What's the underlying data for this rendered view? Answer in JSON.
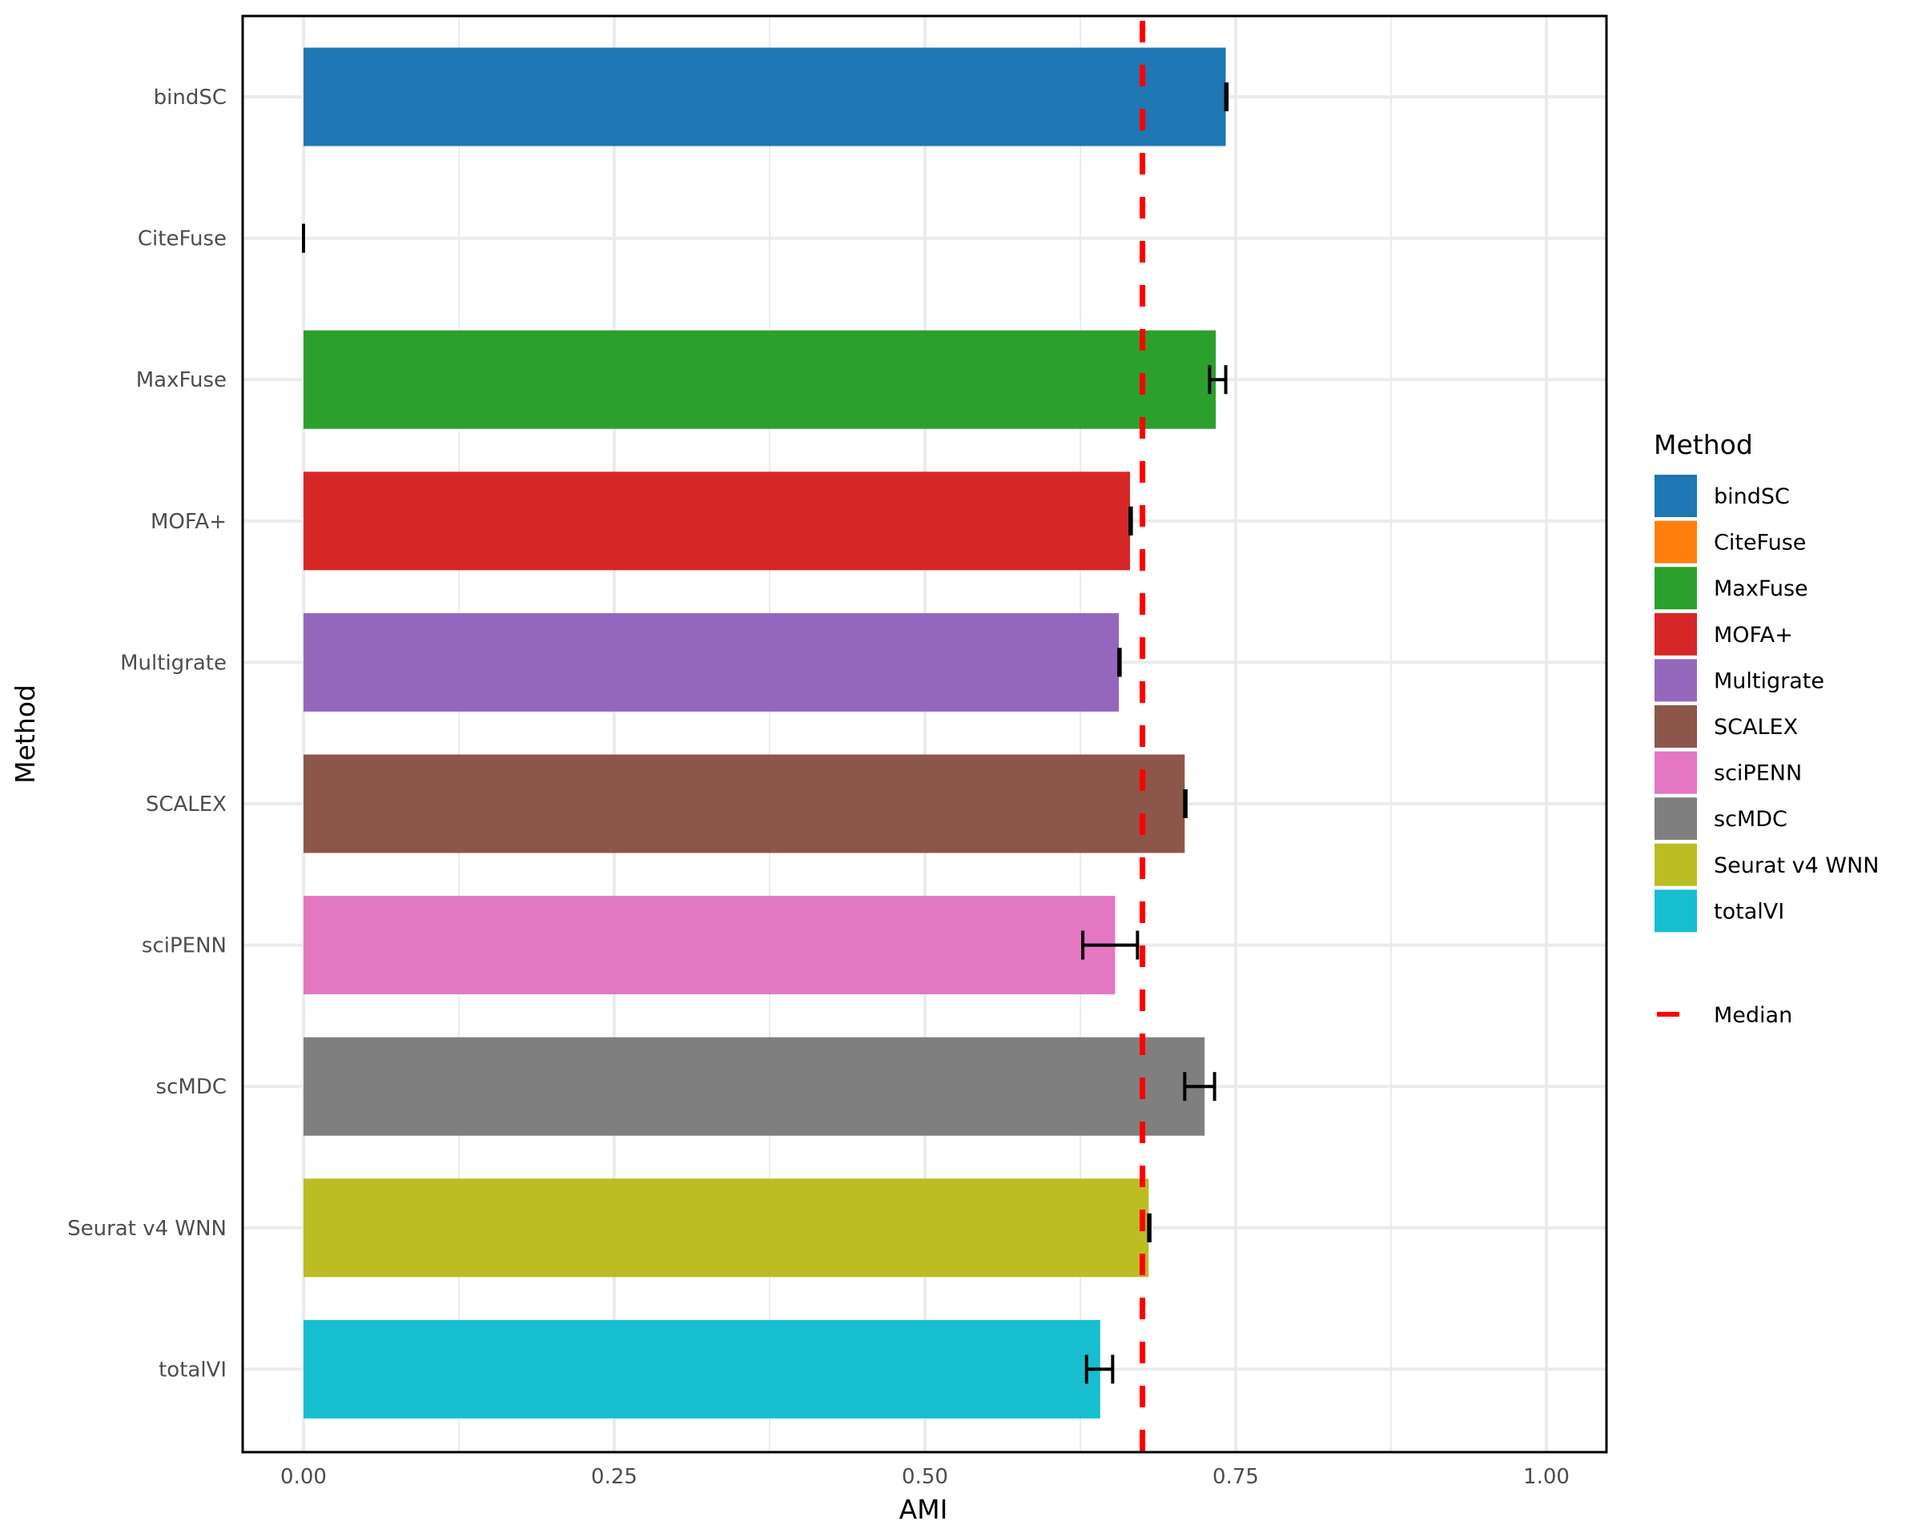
{
  "chart_data": {
    "type": "bar",
    "orientation": "horizontal",
    "title": "",
    "xlabel": "AMI",
    "ylabel": "Method",
    "xlim": [
      -0.048,
      1.05
    ],
    "xticks": [
      0.0,
      0.25,
      0.5,
      0.75,
      1.0
    ],
    "xtick_labels": [
      "0.00",
      "0.25",
      "0.50",
      "0.75",
      "1.00"
    ],
    "grid": true,
    "legend_position": "right",
    "categories": [
      "bindSC",
      "CiteFuse",
      "MaxFuse",
      "MOFA+",
      "Multigrate",
      "SCALEX",
      "sciPENN",
      "scMDC",
      "Seurat v4 WNN",
      "totalVI"
    ],
    "values": [
      0.742,
      0.0,
      0.734,
      0.665,
      0.656,
      0.709,
      0.653,
      0.725,
      0.68,
      0.641
    ],
    "error_low": [
      0.742,
      0.0,
      0.729,
      0.665,
      0.656,
      0.709,
      0.627,
      0.709,
      0.68,
      0.63
    ],
    "error_high": [
      0.743,
      0.0,
      0.742,
      0.666,
      0.657,
      0.71,
      0.671,
      0.733,
      0.681,
      0.651
    ],
    "colors": [
      "#1f77b4",
      "#ff7f0e",
      "#2ca02c",
      "#d62728",
      "#9467bd",
      "#8c564b",
      "#e377c2",
      "#7f7f7f",
      "#bcbd22",
      "#17becf"
    ],
    "reference_lines": [
      {
        "label": "Median",
        "value": 0.675,
        "color": "#ff0000",
        "style": "dashed"
      }
    ],
    "legend": {
      "title": "Method",
      "entries": [
        "bindSC",
        "CiteFuse",
        "MaxFuse",
        "MOFA+",
        "Multigrate",
        "SCALEX",
        "sciPENN",
        "scMDC",
        "Seurat v4 WNN",
        "totalVI"
      ],
      "line_entry": "Median"
    }
  },
  "axes": {
    "x_title": "AMI",
    "y_title": "Method"
  },
  "legend": {
    "title": "Method",
    "median_label": "Median"
  }
}
